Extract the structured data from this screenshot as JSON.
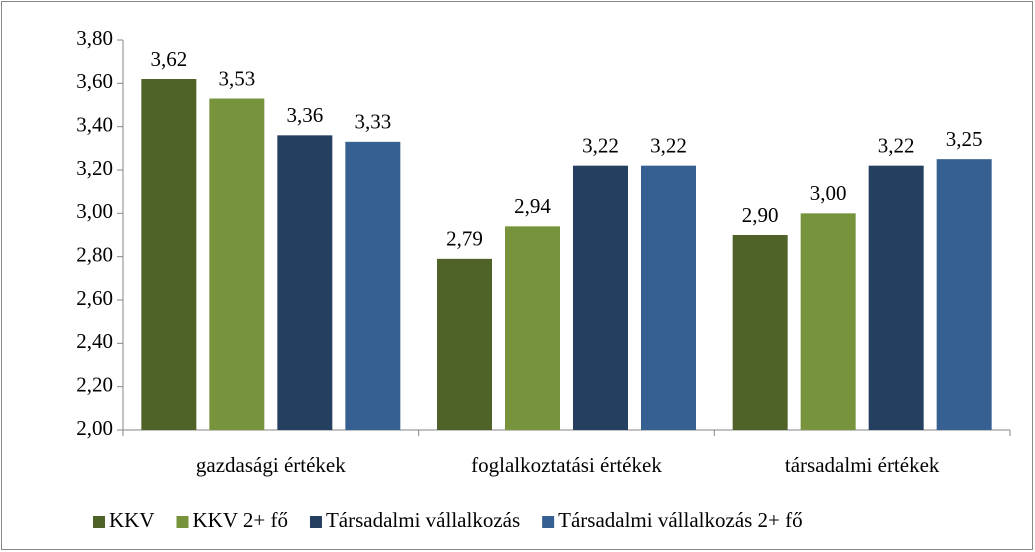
{
  "chart_data": {
    "type": "bar",
    "categories": [
      "gazdasági értékek",
      "foglalkoztatási értékek",
      "társadalmi értékek"
    ],
    "series": [
      {
        "name": "KKV",
        "color": "#4f6228",
        "values": [
          3.62,
          2.79,
          2.9
        ],
        "value_labels": [
          "3,62",
          "2,79",
          "2,90"
        ]
      },
      {
        "name": "KKV 2+ fő",
        "color": "#77933c",
        "values": [
          3.53,
          2.94,
          3.0
        ],
        "value_labels": [
          "3,53",
          "2,94",
          "3,00"
        ]
      },
      {
        "name": "Társadalmi vállalkozás",
        "color": "#243f60",
        "values": [
          3.36,
          3.22,
          3.22
        ],
        "value_labels": [
          "3,36",
          "3,22",
          "3,22"
        ]
      },
      {
        "name": "Társadalmi vállalkozás 2+ fő",
        "color": "#366092",
        "values": [
          3.33,
          3.22,
          3.25
        ],
        "value_labels": [
          "3,33",
          "3,22",
          "3,25"
        ]
      }
    ],
    "ylim": [
      2.0,
      3.8
    ],
    "yticks": [
      {
        "value": 2.0,
        "label": "2,00"
      },
      {
        "value": 2.2,
        "label": "2,20"
      },
      {
        "value": 2.4,
        "label": "2,40"
      },
      {
        "value": 2.6,
        "label": "2,60"
      },
      {
        "value": 2.8,
        "label": "2,80"
      },
      {
        "value": 3.0,
        "label": "3,00"
      },
      {
        "value": 3.2,
        "label": "3,20"
      },
      {
        "value": 3.4,
        "label": "3,40"
      },
      {
        "value": 3.6,
        "label": "3,60"
      },
      {
        "value": 3.8,
        "label": "3,80"
      }
    ],
    "grid": false,
    "legend": "bottom"
  }
}
